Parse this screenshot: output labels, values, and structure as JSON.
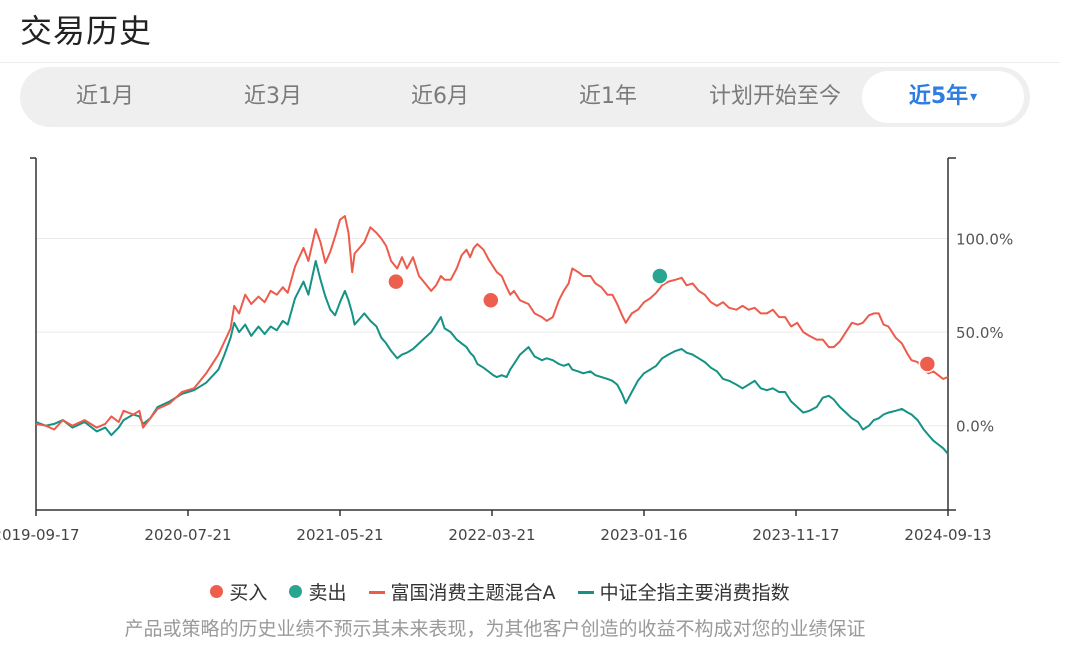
{
  "header": {
    "title": "交易历史"
  },
  "tabs": [
    {
      "label": "近1月",
      "active": false
    },
    {
      "label": "近3月",
      "active": false
    },
    {
      "label": "近6月",
      "active": false
    },
    {
      "label": "近1年",
      "active": false
    },
    {
      "label": "计划开始至今",
      "active": false
    },
    {
      "label": "近5年",
      "active": true,
      "caret": "▾"
    }
  ],
  "colors": {
    "fund": "#ec5b4c",
    "index": "#149284",
    "buy": "#ee5e4f",
    "sell": "#2aa58f",
    "accent": "#2f7de1"
  },
  "chart_data": {
    "type": "line",
    "x_ticks": [
      "2019-09-17",
      "2020-07-21",
      "2021-05-21",
      "2022-03-21",
      "2023-01-16",
      "2023-11-17",
      "2024-09-13"
    ],
    "y_ticks": [
      {
        "value": 100,
        "label": "100.0%"
      },
      {
        "value": 50,
        "label": "50.0%"
      },
      {
        "value": 0,
        "label": "0.0%"
      }
    ],
    "ylim": [
      -45,
      143
    ],
    "grid": true,
    "series": [
      {
        "name": "富国消费主题混合A",
        "values": [
          [
            0,
            1
          ],
          [
            8,
            0
          ],
          [
            15,
            -2
          ],
          [
            22,
            3
          ],
          [
            30,
            0
          ],
          [
            40,
            3
          ],
          [
            50,
            -1
          ],
          [
            57,
            1
          ],
          [
            62,
            5
          ],
          [
            68,
            2
          ],
          [
            72,
            8
          ],
          [
            80,
            6
          ],
          [
            85,
            8
          ],
          [
            88,
            -1
          ],
          [
            94,
            4
          ],
          [
            100,
            9
          ],
          [
            110,
            12
          ],
          [
            120,
            18
          ],
          [
            130,
            20
          ],
          [
            140,
            28
          ],
          [
            150,
            38
          ],
          [
            155,
            45
          ],
          [
            160,
            52
          ],
          [
            163,
            64
          ],
          [
            167,
            60
          ],
          [
            172,
            70
          ],
          [
            177,
            65
          ],
          [
            183,
            69
          ],
          [
            188,
            66
          ],
          [
            193,
            72
          ],
          [
            198,
            70
          ],
          [
            203,
            74
          ],
          [
            207,
            71
          ],
          [
            213,
            85
          ],
          [
            220,
            95
          ],
          [
            224,
            88
          ],
          [
            230,
            105
          ],
          [
            234,
            98
          ],
          [
            238,
            87
          ],
          [
            242,
            93
          ],
          [
            246,
            101
          ],
          [
            250,
            110
          ],
          [
            254,
            112
          ],
          [
            257,
            103
          ],
          [
            260,
            82
          ],
          [
            262,
            92
          ],
          [
            266,
            95
          ],
          [
            270,
            98
          ],
          [
            275,
            106
          ],
          [
            280,
            103
          ],
          [
            284,
            100
          ],
          [
            288,
            96
          ],
          [
            292,
            88
          ],
          [
            297,
            84
          ],
          [
            301,
            90
          ],
          [
            305,
            84
          ],
          [
            310,
            90
          ],
          [
            315,
            80
          ],
          [
            320,
            76
          ],
          [
            325,
            72
          ],
          [
            329,
            75
          ],
          [
            333,
            80
          ],
          [
            336,
            78
          ],
          [
            341,
            78
          ],
          [
            346,
            84
          ],
          [
            350,
            91
          ],
          [
            354,
            94
          ],
          [
            357,
            90
          ],
          [
            360,
            95
          ],
          [
            363,
            97
          ],
          [
            368,
            94
          ],
          [
            372,
            89
          ],
          [
            376,
            85
          ],
          [
            379,
            82
          ],
          [
            383,
            80
          ],
          [
            387,
            74
          ],
          [
            390,
            70
          ],
          [
            393,
            72
          ],
          [
            398,
            67
          ],
          [
            405,
            65
          ],
          [
            410,
            60
          ],
          [
            416,
            58
          ],
          [
            420,
            56
          ],
          [
            425,
            58
          ],
          [
            430,
            67
          ],
          [
            434,
            72
          ],
          [
            438,
            76
          ],
          [
            441,
            84
          ],
          [
            446,
            82
          ],
          [
            450,
            80
          ],
          [
            456,
            80
          ],
          [
            460,
            76
          ],
          [
            465,
            74
          ],
          [
            470,
            70
          ],
          [
            474,
            70
          ],
          [
            478,
            65
          ],
          [
            482,
            59
          ],
          [
            485,
            55
          ],
          [
            490,
            60
          ],
          [
            495,
            62
          ],
          [
            500,
            66
          ],
          [
            505,
            68
          ],
          [
            510,
            71
          ],
          [
            515,
            75
          ],
          [
            520,
            77
          ],
          [
            526,
            78
          ],
          [
            531,
            79
          ],
          [
            535,
            75
          ],
          [
            540,
            76
          ],
          [
            545,
            72
          ],
          [
            550,
            70
          ],
          [
            555,
            66
          ],
          [
            560,
            64
          ],
          [
            565,
            66
          ],
          [
            570,
            63
          ],
          [
            576,
            62
          ],
          [
            581,
            64
          ],
          [
            586,
            62
          ],
          [
            591,
            63
          ],
          [
            596,
            60
          ],
          [
            601,
            60
          ],
          [
            606,
            62
          ],
          [
            611,
            58
          ],
          [
            616,
            58
          ],
          [
            621,
            53
          ],
          [
            626,
            55
          ],
          [
            631,
            50
          ],
          [
            636,
            48
          ],
          [
            642,
            46
          ],
          [
            647,
            46
          ],
          [
            652,
            42
          ],
          [
            656,
            42
          ],
          [
            661,
            45
          ],
          [
            666,
            50
          ],
          [
            671,
            55
          ],
          [
            676,
            54
          ],
          [
            680,
            55
          ],
          [
            685,
            59
          ],
          [
            689,
            60
          ],
          [
            693,
            60
          ],
          [
            697,
            54
          ],
          [
            701,
            53
          ],
          [
            707,
            47
          ],
          [
            712,
            44
          ],
          [
            717,
            38
          ],
          [
            720,
            35
          ],
          [
            725,
            34
          ],
          [
            730,
            30
          ],
          [
            734,
            28
          ],
          [
            738,
            29
          ],
          [
            742,
            27
          ],
          [
            746,
            25
          ],
          [
            750,
            26
          ]
        ]
      },
      {
        "name": "中证全指主要消费指数",
        "values": [
          [
            0,
            2
          ],
          [
            8,
            0
          ],
          [
            15,
            1
          ],
          [
            22,
            3
          ],
          [
            30,
            -1
          ],
          [
            40,
            2
          ],
          [
            50,
            -3
          ],
          [
            57,
            -1
          ],
          [
            62,
            -5
          ],
          [
            68,
            -1
          ],
          [
            72,
            3
          ],
          [
            80,
            6
          ],
          [
            85,
            5
          ],
          [
            88,
            1
          ],
          [
            94,
            4
          ],
          [
            100,
            10
          ],
          [
            110,
            13
          ],
          [
            120,
            17
          ],
          [
            130,
            19
          ],
          [
            140,
            23
          ],
          [
            150,
            30
          ],
          [
            155,
            38
          ],
          [
            160,
            47
          ],
          [
            163,
            55
          ],
          [
            167,
            50
          ],
          [
            172,
            54
          ],
          [
            177,
            48
          ],
          [
            183,
            53
          ],
          [
            188,
            49
          ],
          [
            193,
            53
          ],
          [
            198,
            51
          ],
          [
            203,
            56
          ],
          [
            207,
            54
          ],
          [
            213,
            68
          ],
          [
            220,
            77
          ],
          [
            224,
            70
          ],
          [
            230,
            88
          ],
          [
            234,
            78
          ],
          [
            238,
            69
          ],
          [
            242,
            62
          ],
          [
            246,
            59
          ],
          [
            250,
            66
          ],
          [
            254,
            72
          ],
          [
            257,
            67
          ],
          [
            260,
            60
          ],
          [
            262,
            54
          ],
          [
            266,
            57
          ],
          [
            270,
            60
          ],
          [
            275,
            56
          ],
          [
            280,
            53
          ],
          [
            284,
            47
          ],
          [
            288,
            44
          ],
          [
            292,
            40
          ],
          [
            297,
            36
          ],
          [
            301,
            38
          ],
          [
            305,
            39
          ],
          [
            310,
            41
          ],
          [
            315,
            44
          ],
          [
            320,
            47
          ],
          [
            325,
            50
          ],
          [
            329,
            54
          ],
          [
            333,
            58
          ],
          [
            336,
            52
          ],
          [
            341,
            50
          ],
          [
            346,
            46
          ],
          [
            350,
            44
          ],
          [
            354,
            42
          ],
          [
            357,
            39
          ],
          [
            360,
            37
          ],
          [
            363,
            33
          ],
          [
            368,
            31
          ],
          [
            372,
            29
          ],
          [
            376,
            27
          ],
          [
            379,
            26
          ],
          [
            383,
            27
          ],
          [
            387,
            26
          ],
          [
            390,
            30
          ],
          [
            393,
            33
          ],
          [
            398,
            38
          ],
          [
            405,
            42
          ],
          [
            410,
            37
          ],
          [
            416,
            35
          ],
          [
            420,
            36
          ],
          [
            425,
            35
          ],
          [
            430,
            33
          ],
          [
            434,
            32
          ],
          [
            438,
            33
          ],
          [
            441,
            30
          ],
          [
            446,
            29
          ],
          [
            450,
            28
          ],
          [
            456,
            29
          ],
          [
            460,
            27
          ],
          [
            465,
            26
          ],
          [
            470,
            25
          ],
          [
            474,
            24
          ],
          [
            478,
            22
          ],
          [
            482,
            17
          ],
          [
            485,
            12
          ],
          [
            490,
            18
          ],
          [
            495,
            24
          ],
          [
            500,
            28
          ],
          [
            505,
            30
          ],
          [
            510,
            32
          ],
          [
            515,
            36
          ],
          [
            520,
            38
          ],
          [
            526,
            40
          ],
          [
            531,
            41
          ],
          [
            535,
            39
          ],
          [
            540,
            38
          ],
          [
            545,
            36
          ],
          [
            550,
            34
          ],
          [
            555,
            31
          ],
          [
            560,
            29
          ],
          [
            565,
            25
          ],
          [
            570,
            24
          ],
          [
            576,
            22
          ],
          [
            581,
            20
          ],
          [
            586,
            22
          ],
          [
            591,
            24
          ],
          [
            596,
            20
          ],
          [
            601,
            19
          ],
          [
            606,
            20
          ],
          [
            611,
            18
          ],
          [
            616,
            18
          ],
          [
            621,
            13
          ],
          [
            626,
            10
          ],
          [
            631,
            7
          ],
          [
            636,
            8
          ],
          [
            642,
            10
          ],
          [
            647,
            15
          ],
          [
            652,
            16
          ],
          [
            656,
            14
          ],
          [
            661,
            10
          ],
          [
            666,
            7
          ],
          [
            671,
            4
          ],
          [
            676,
            2
          ],
          [
            680,
            -2
          ],
          [
            685,
            0
          ],
          [
            689,
            3
          ],
          [
            693,
            4
          ],
          [
            697,
            6
          ],
          [
            701,
            7
          ],
          [
            707,
            8
          ],
          [
            712,
            9
          ],
          [
            717,
            7
          ],
          [
            720,
            6
          ],
          [
            725,
            3
          ],
          [
            730,
            -2
          ],
          [
            734,
            -5
          ],
          [
            738,
            -8
          ],
          [
            742,
            -10
          ],
          [
            746,
            -12
          ],
          [
            750,
            -15
          ]
        ]
      }
    ],
    "markers": [
      {
        "type": "buy",
        "x": 296,
        "y": 77
      },
      {
        "type": "buy",
        "x": 374,
        "y": 67
      },
      {
        "type": "sell",
        "x": 513,
        "y": 80
      },
      {
        "type": "buy",
        "x": 733,
        "y": 33
      }
    ]
  },
  "legend": {
    "buy": "买入",
    "sell": "卖出",
    "fund": "富国消费主题混合A",
    "index": "中证全指主要消费指数"
  },
  "footer": {
    "disclaimer": "产品或策略的历史业绩不预示其未来表现，为其他客户创造的收益不构成对您的业绩保证"
  }
}
